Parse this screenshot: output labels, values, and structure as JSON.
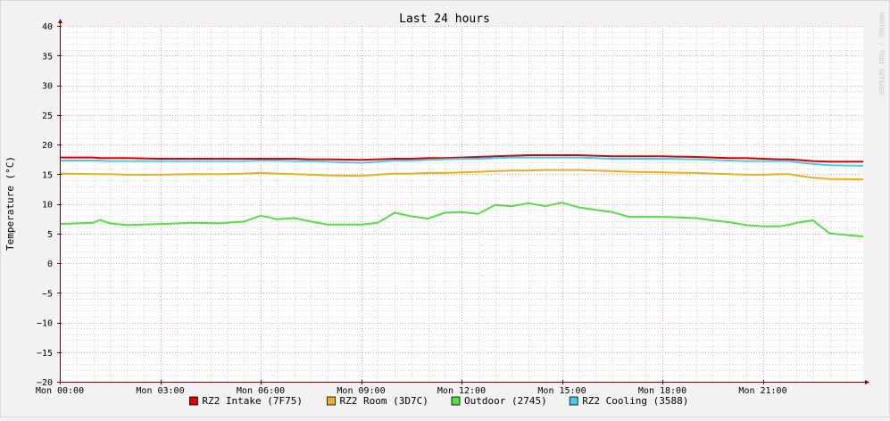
{
  "chart_data": {
    "type": "line",
    "title": "Last 24 hours",
    "xlabel": "",
    "ylabel": "Temperature (°C)",
    "watermark": "RRDTOOL / TOBI OETIKER",
    "ylim": [
      -20,
      40
    ],
    "yticks": [
      40,
      35,
      30,
      25,
      20,
      15,
      10,
      5,
      0,
      -5,
      -10,
      -15,
      -20
    ],
    "ytick_labels": [
      "40",
      "35",
      "30",
      "25",
      "20",
      "15",
      "10",
      "5",
      "0",
      "−5",
      "−10",
      "−15",
      "−20"
    ],
    "xlim": [
      0,
      24
    ],
    "xticks": [
      0,
      3,
      6,
      9,
      12,
      15,
      18,
      21
    ],
    "xtick_labels": [
      "Mon 00:00",
      "Mon 03:00",
      "Mon 06:00",
      "Mon 09:00",
      "Mon 12:00",
      "Mon 15:00",
      "Mon 18:00",
      "Mon 21:00"
    ],
    "grid": true,
    "legend_position": "bottom",
    "colors": {
      "background": "#f2f2f2",
      "plot_background": "#ffffff",
      "grid_major": "#e8a0a0",
      "grid_minor": "#d6d6d6",
      "axis": "#800000",
      "text": "#000000"
    },
    "x": [
      0,
      1,
      1.2,
      1.5,
      2,
      3,
      4,
      4.8,
      5,
      5.5,
      6,
      6.5,
      7,
      7.5,
      8,
      9,
      9.5,
      10,
      10.5,
      11,
      11.5,
      12,
      12.5,
      13,
      13.5,
      14,
      14.5,
      15,
      15.5,
      16,
      16.5,
      17,
      18,
      19,
      19.5,
      20,
      20.5,
      21,
      21.5,
      21.8,
      22,
      22.5,
      23,
      24
    ],
    "series": [
      {
        "name": "RZ2 Intake (7F75)",
        "color": "#dd0000",
        "values": [
          17.8,
          17.8,
          17.7,
          17.7,
          17.7,
          17.6,
          17.6,
          17.6,
          17.6,
          17.6,
          17.6,
          17.6,
          17.6,
          17.5,
          17.5,
          17.4,
          17.5,
          17.6,
          17.6,
          17.7,
          17.7,
          17.8,
          17.9,
          18.0,
          18.1,
          18.2,
          18.2,
          18.2,
          18.2,
          18.1,
          18.0,
          18.0,
          18.0,
          17.9,
          17.8,
          17.7,
          17.7,
          17.6,
          17.5,
          17.5,
          17.4,
          17.2,
          17.1,
          17.1
        ]
      },
      {
        "name": "RZ2 Room (3D7C)",
        "color": "#e8b020",
        "values": [
          15.1,
          15.0,
          15.0,
          15.0,
          14.9,
          14.9,
          15.0,
          15.0,
          15.0,
          15.1,
          15.2,
          15.1,
          15.0,
          14.9,
          14.8,
          14.7,
          14.9,
          15.1,
          15.1,
          15.2,
          15.2,
          15.3,
          15.4,
          15.5,
          15.6,
          15.6,
          15.7,
          15.7,
          15.7,
          15.6,
          15.5,
          15.4,
          15.3,
          15.2,
          15.1,
          15.0,
          14.9,
          14.9,
          15.0,
          15.0,
          14.8,
          14.4,
          14.2,
          14.1
        ]
      },
      {
        "name": "Outdoor (2745)",
        "color": "#55dd44",
        "values": [
          6.6,
          6.8,
          7.3,
          6.7,
          6.4,
          6.6,
          6.8,
          6.7,
          6.8,
          7.0,
          8.0,
          7.4,
          7.6,
          7.0,
          6.5,
          6.5,
          6.8,
          8.5,
          7.9,
          7.5,
          8.5,
          8.6,
          8.3,
          9.8,
          9.6,
          10.1,
          9.6,
          10.2,
          9.4,
          9.0,
          8.6,
          7.8,
          7.8,
          7.6,
          7.2,
          6.9,
          6.4,
          6.2,
          6.2,
          6.5,
          6.8,
          7.2,
          5.0,
          4.5
        ]
      },
      {
        "name": "RZ2 Cooling (3588)",
        "color": "#44ccee",
        "values": [
          17.3,
          17.3,
          17.3,
          17.2,
          17.2,
          17.2,
          17.2,
          17.2,
          17.2,
          17.2,
          17.3,
          17.3,
          17.2,
          17.2,
          17.1,
          16.9,
          17.1,
          17.3,
          17.3,
          17.4,
          17.5,
          17.6,
          17.6,
          17.7,
          17.8,
          17.8,
          17.8,
          17.8,
          17.8,
          17.7,
          17.6,
          17.6,
          17.6,
          17.5,
          17.4,
          17.3,
          17.2,
          17.2,
          17.2,
          17.2,
          17.0,
          16.7,
          16.5,
          16.4
        ]
      }
    ]
  }
}
